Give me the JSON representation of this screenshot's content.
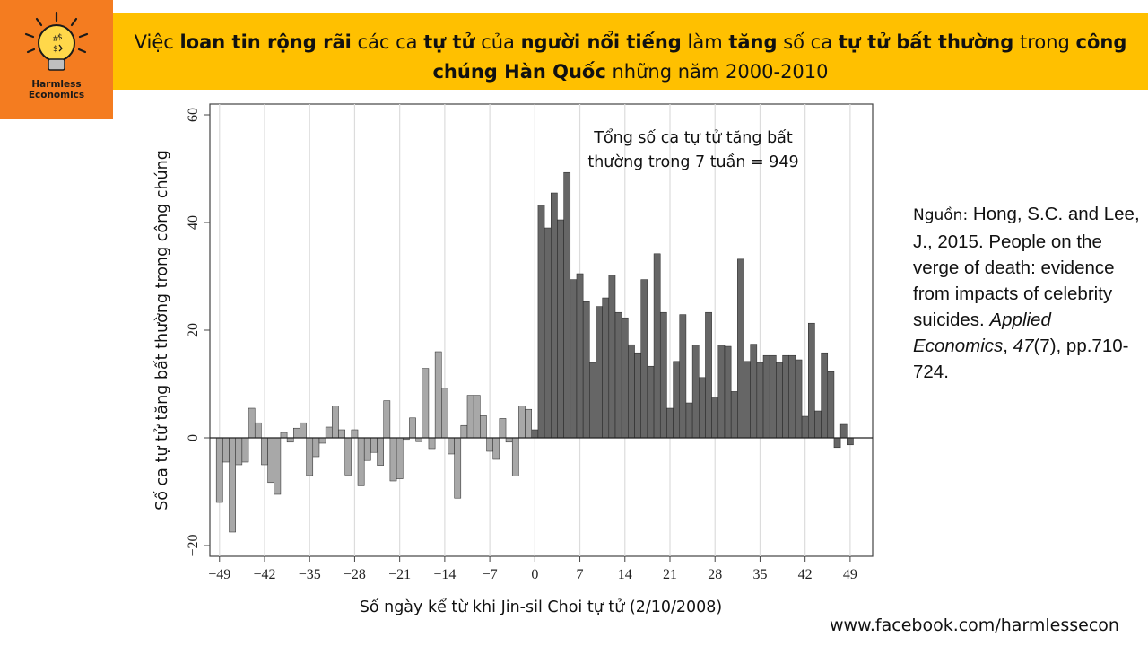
{
  "logo": {
    "line1": "Harmless",
    "line2": "Economics",
    "icon": "lightbulb-icon"
  },
  "banner": {
    "segments": [
      {
        "t": "Việc ",
        "b": false
      },
      {
        "t": "loan tin rộng rãi",
        "b": true
      },
      {
        "t": " các ca ",
        "b": false
      },
      {
        "t": "tự tử",
        "b": true
      },
      {
        "t": " của ",
        "b": false
      },
      {
        "t": "người nổi tiếng",
        "b": true
      },
      {
        "t": " làm ",
        "b": false
      },
      {
        "t": "tăng",
        "b": true
      },
      {
        "t": " số ca ",
        "b": false
      },
      {
        "t": "tự tử bất thường",
        "b": true
      },
      {
        "t": " trong ",
        "b": false
      },
      {
        "t": "công chúng Hàn Quốc",
        "b": true
      },
      {
        "t": " những năm 2000-2010",
        "b": false
      }
    ]
  },
  "source": {
    "label": "Nguồn:",
    "text1": " Hong, S.C. and Lee, J., 2015. People on the verge of death: evidence from impacts of celebrity suicides. ",
    "journal": "Applied Economics",
    "comma": ", ",
    "volume": "47",
    "rest": "(7), pp.710-724."
  },
  "footer": {
    "url": "www.facebook.com/harmlessecon"
  },
  "colors": {
    "logo_bg": "#f47c20",
    "banner_bg": "#ffc000",
    "bar_before": "#a8a8a8",
    "bar_after": "#666666"
  },
  "chart_data": {
    "type": "bar",
    "title": "",
    "xlabel": "Số ngày kể từ khi Jin-sil Choi tự tử (2/10/2008)",
    "ylabel": "Số ca tự tử tăng bất thường trong công chúng",
    "annotation": [
      "Tổng số ca tự tử tăng bất",
      "thường trong 7 tuần = 949"
    ],
    "xlim": [
      -50.5,
      52.5
    ],
    "ylim": [
      -22,
      62
    ],
    "xticks": [
      -49,
      -42,
      -35,
      -28,
      -21,
      -14,
      -7,
      0,
      7,
      14,
      21,
      28,
      35,
      42,
      49
    ],
    "xtick_labels": [
      "−49",
      "−42",
      "−35",
      "−28",
      "−21",
      "−14",
      "−7",
      "0",
      "7",
      "14",
      "21",
      "28",
      "35",
      "42",
      "49"
    ],
    "yticks": [
      -20,
      0,
      20,
      40,
      60
    ],
    "ytick_labels": [
      "−20",
      "0",
      "20",
      "40",
      "60"
    ],
    "grid": "vertical",
    "x_start": -49,
    "values": [
      -12,
      -4.5,
      -17.5,
      -5,
      -4.5,
      5.5,
      2.8,
      -5,
      -8.3,
      -10.5,
      1,
      -0.8,
      1.8,
      2.8,
      -7,
      -3.5,
      -1,
      2,
      5.9,
      1.5,
      -6.9,
      1.5,
      -8.9,
      -4.2,
      -2.7,
      -5.1,
      6.9,
      -8,
      -7.6,
      -0.3,
      3.7,
      -0.7,
      12.9,
      -2,
      16,
      9.2,
      -3,
      -11.2,
      2.3,
      7.9,
      7.9,
      4.1,
      -2.5,
      -4,
      3.6,
      -0.8,
      -7.1,
      5.9,
      5.3,
      1.5,
      43.2,
      39,
      45.5,
      40.5,
      49.3,
      29.4,
      30.5,
      25.3,
      14,
      24.4,
      26,
      30.2,
      23.3,
      22.3,
      17.3,
      15.8,
      29.4,
      13.3,
      34.2,
      23.3,
      5.5,
      14.2,
      22.9,
      6.5,
      17.2,
      11.2,
      23.3,
      7.6,
      17.2,
      17,
      8.6,
      33.2,
      14.2,
      17.4,
      14,
      15.3,
      15.3,
      14,
      15.3,
      15.3,
      14.5,
      4,
      21.3,
      5,
      15.8,
      12.3,
      -1.8,
      2.5,
      -1.3
    ]
  }
}
